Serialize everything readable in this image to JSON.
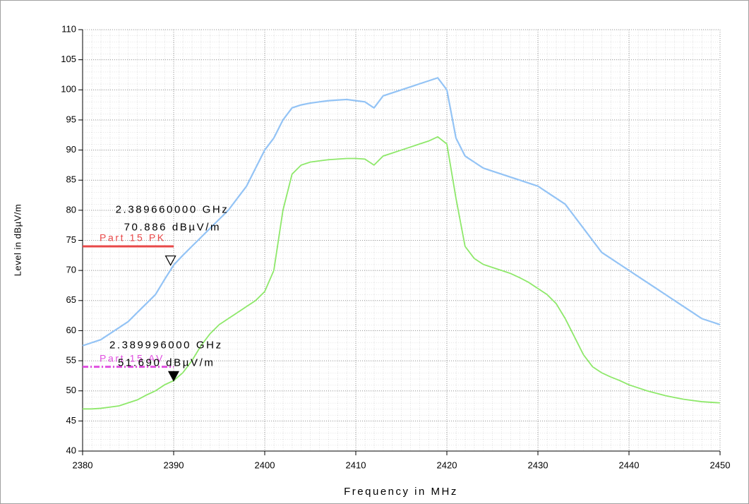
{
  "chart_data": {
    "type": "line",
    "xlabel": "Frequency in MHz",
    "ylabel": "Level in dBµV/m",
    "xlim": [
      2380,
      2450
    ],
    "ylim": [
      40,
      110
    ],
    "xticks": [
      2380,
      2390,
      2400,
      2410,
      2420,
      2430,
      2440,
      2450
    ],
    "yticks": [
      40,
      45,
      50,
      55,
      60,
      65,
      70,
      75,
      80,
      85,
      90,
      95,
      100,
      105,
      110
    ],
    "grid": true,
    "x": [
      2380,
      2381,
      2382,
      2383,
      2384,
      2385,
      2386,
      2387,
      2388,
      2389,
      2390,
      2391,
      2392,
      2393,
      2394,
      2395,
      2396,
      2397,
      2398,
      2399,
      2400,
      2401,
      2402,
      2403,
      2404,
      2405,
      2406,
      2407,
      2408,
      2409,
      2410,
      2411,
      2412,
      2413,
      2414,
      2415,
      2416,
      2417,
      2418,
      2419,
      2420,
      2421,
      2422,
      2423,
      2424,
      2425,
      2426,
      2427,
      2428,
      2429,
      2430,
      2431,
      2432,
      2433,
      2434,
      2435,
      2436,
      2437,
      2438,
      2439,
      2440,
      2441,
      2442,
      2443,
      2444,
      2445,
      2446,
      2447,
      2448,
      2449,
      2450
    ],
    "series": [
      {
        "color": "#93c3f5",
        "values": [
          57.5,
          58,
          58.5,
          59.5,
          60.5,
          61.5,
          63,
          64.5,
          66,
          68.5,
          70.9,
          72.5,
          74,
          75.5,
          77,
          78.5,
          80,
          82,
          84,
          87,
          90,
          92,
          95,
          97,
          97.5,
          97.8,
          98,
          98.2,
          98.3,
          98.4,
          98.2,
          98,
          97,
          99,
          99.5,
          100,
          100.5,
          101,
          101.5,
          102,
          100,
          92,
          89,
          88,
          87,
          86.5,
          86,
          85.5,
          85,
          84.5,
          84,
          83,
          82,
          81,
          79,
          77,
          75,
          73,
          72,
          71,
          70,
          69,
          68,
          67,
          66,
          65,
          64,
          63,
          62,
          61.5,
          61
        ]
      },
      {
        "color": "#8ee86a",
        "values": [
          47,
          47,
          47.1,
          47.3,
          47.5,
          48,
          48.5,
          49.3,
          50,
          51,
          51.7,
          53,
          55,
          57.5,
          59.5,
          61,
          62,
          63,
          64,
          65,
          66.5,
          70,
          80,
          86,
          87.5,
          88,
          88.2,
          88.4,
          88.5,
          88.6,
          88.6,
          88.5,
          87.5,
          89,
          89.5,
          90,
          90.5,
          91,
          91.5,
          92.2,
          91,
          82,
          74,
          72,
          71,
          70.5,
          70,
          69.5,
          68.8,
          68,
          67,
          66,
          64.5,
          62,
          59,
          56,
          54,
          53,
          52.3,
          51.7,
          51,
          50.5,
          50,
          49.6,
          49.2,
          48.9,
          48.6,
          48.4,
          48.2,
          48.1,
          48
        ]
      }
    ],
    "limits": [
      {
        "name": "Part 15 PK",
        "value": 74,
        "x": [
          2380,
          2390
        ],
        "color": "#e84848",
        "style": "solid"
      },
      {
        "name": "Part 15 AV",
        "value": 54,
        "x": [
          2380,
          2390
        ],
        "color": "#e050e0",
        "style": "dashdot"
      }
    ],
    "markers": [
      {
        "x": 2389.66,
        "y": 70.886,
        "freq_label": "2.389660000 GHz",
        "level_label": "70.886 dBµV/m",
        "filled": false
      },
      {
        "x": 2389.996,
        "y": 51.69,
        "freq_label": "2.389996000 GHz",
        "level_label": "51.690 dBµV/m",
        "filled": true
      }
    ]
  }
}
